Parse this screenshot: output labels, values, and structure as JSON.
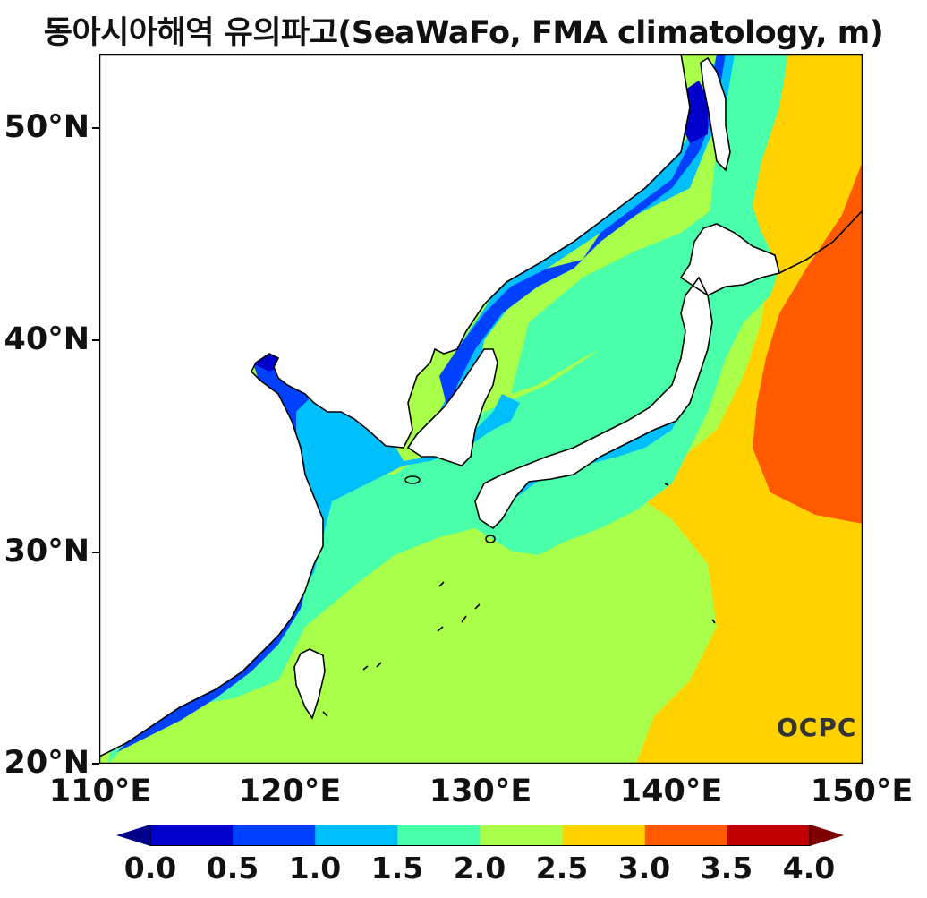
{
  "title": "동아시아해역 유의파고(SeaWaFo, FMA climatology, m)",
  "logo_text": "OCPC",
  "lat_labels": [
    "50°N",
    "40°N",
    "30°N",
    "20°N"
  ],
  "lon_labels": [
    "110°E",
    "120°E",
    "130°E",
    "140°E",
    "150°E"
  ],
  "colorbar": {
    "labels": [
      "0.0",
      "0.5",
      "1.0",
      "1.5",
      "2.0",
      "2.5",
      "3.0",
      "3.5",
      "4.0"
    ],
    "colors": [
      "#0000cd",
      "#0040ff",
      "#00bfff",
      "#4affaa",
      "#aaff4a",
      "#ffd200",
      "#ff5a00",
      "#c00000"
    ],
    "under_color": "#00008b",
    "over_color": "#800000"
  },
  "map": {
    "lon_range": [
      110,
      150
    ],
    "lat_range": [
      20,
      53.5
    ],
    "land_color": "#ffffff",
    "coastline_color": "#000000"
  }
}
